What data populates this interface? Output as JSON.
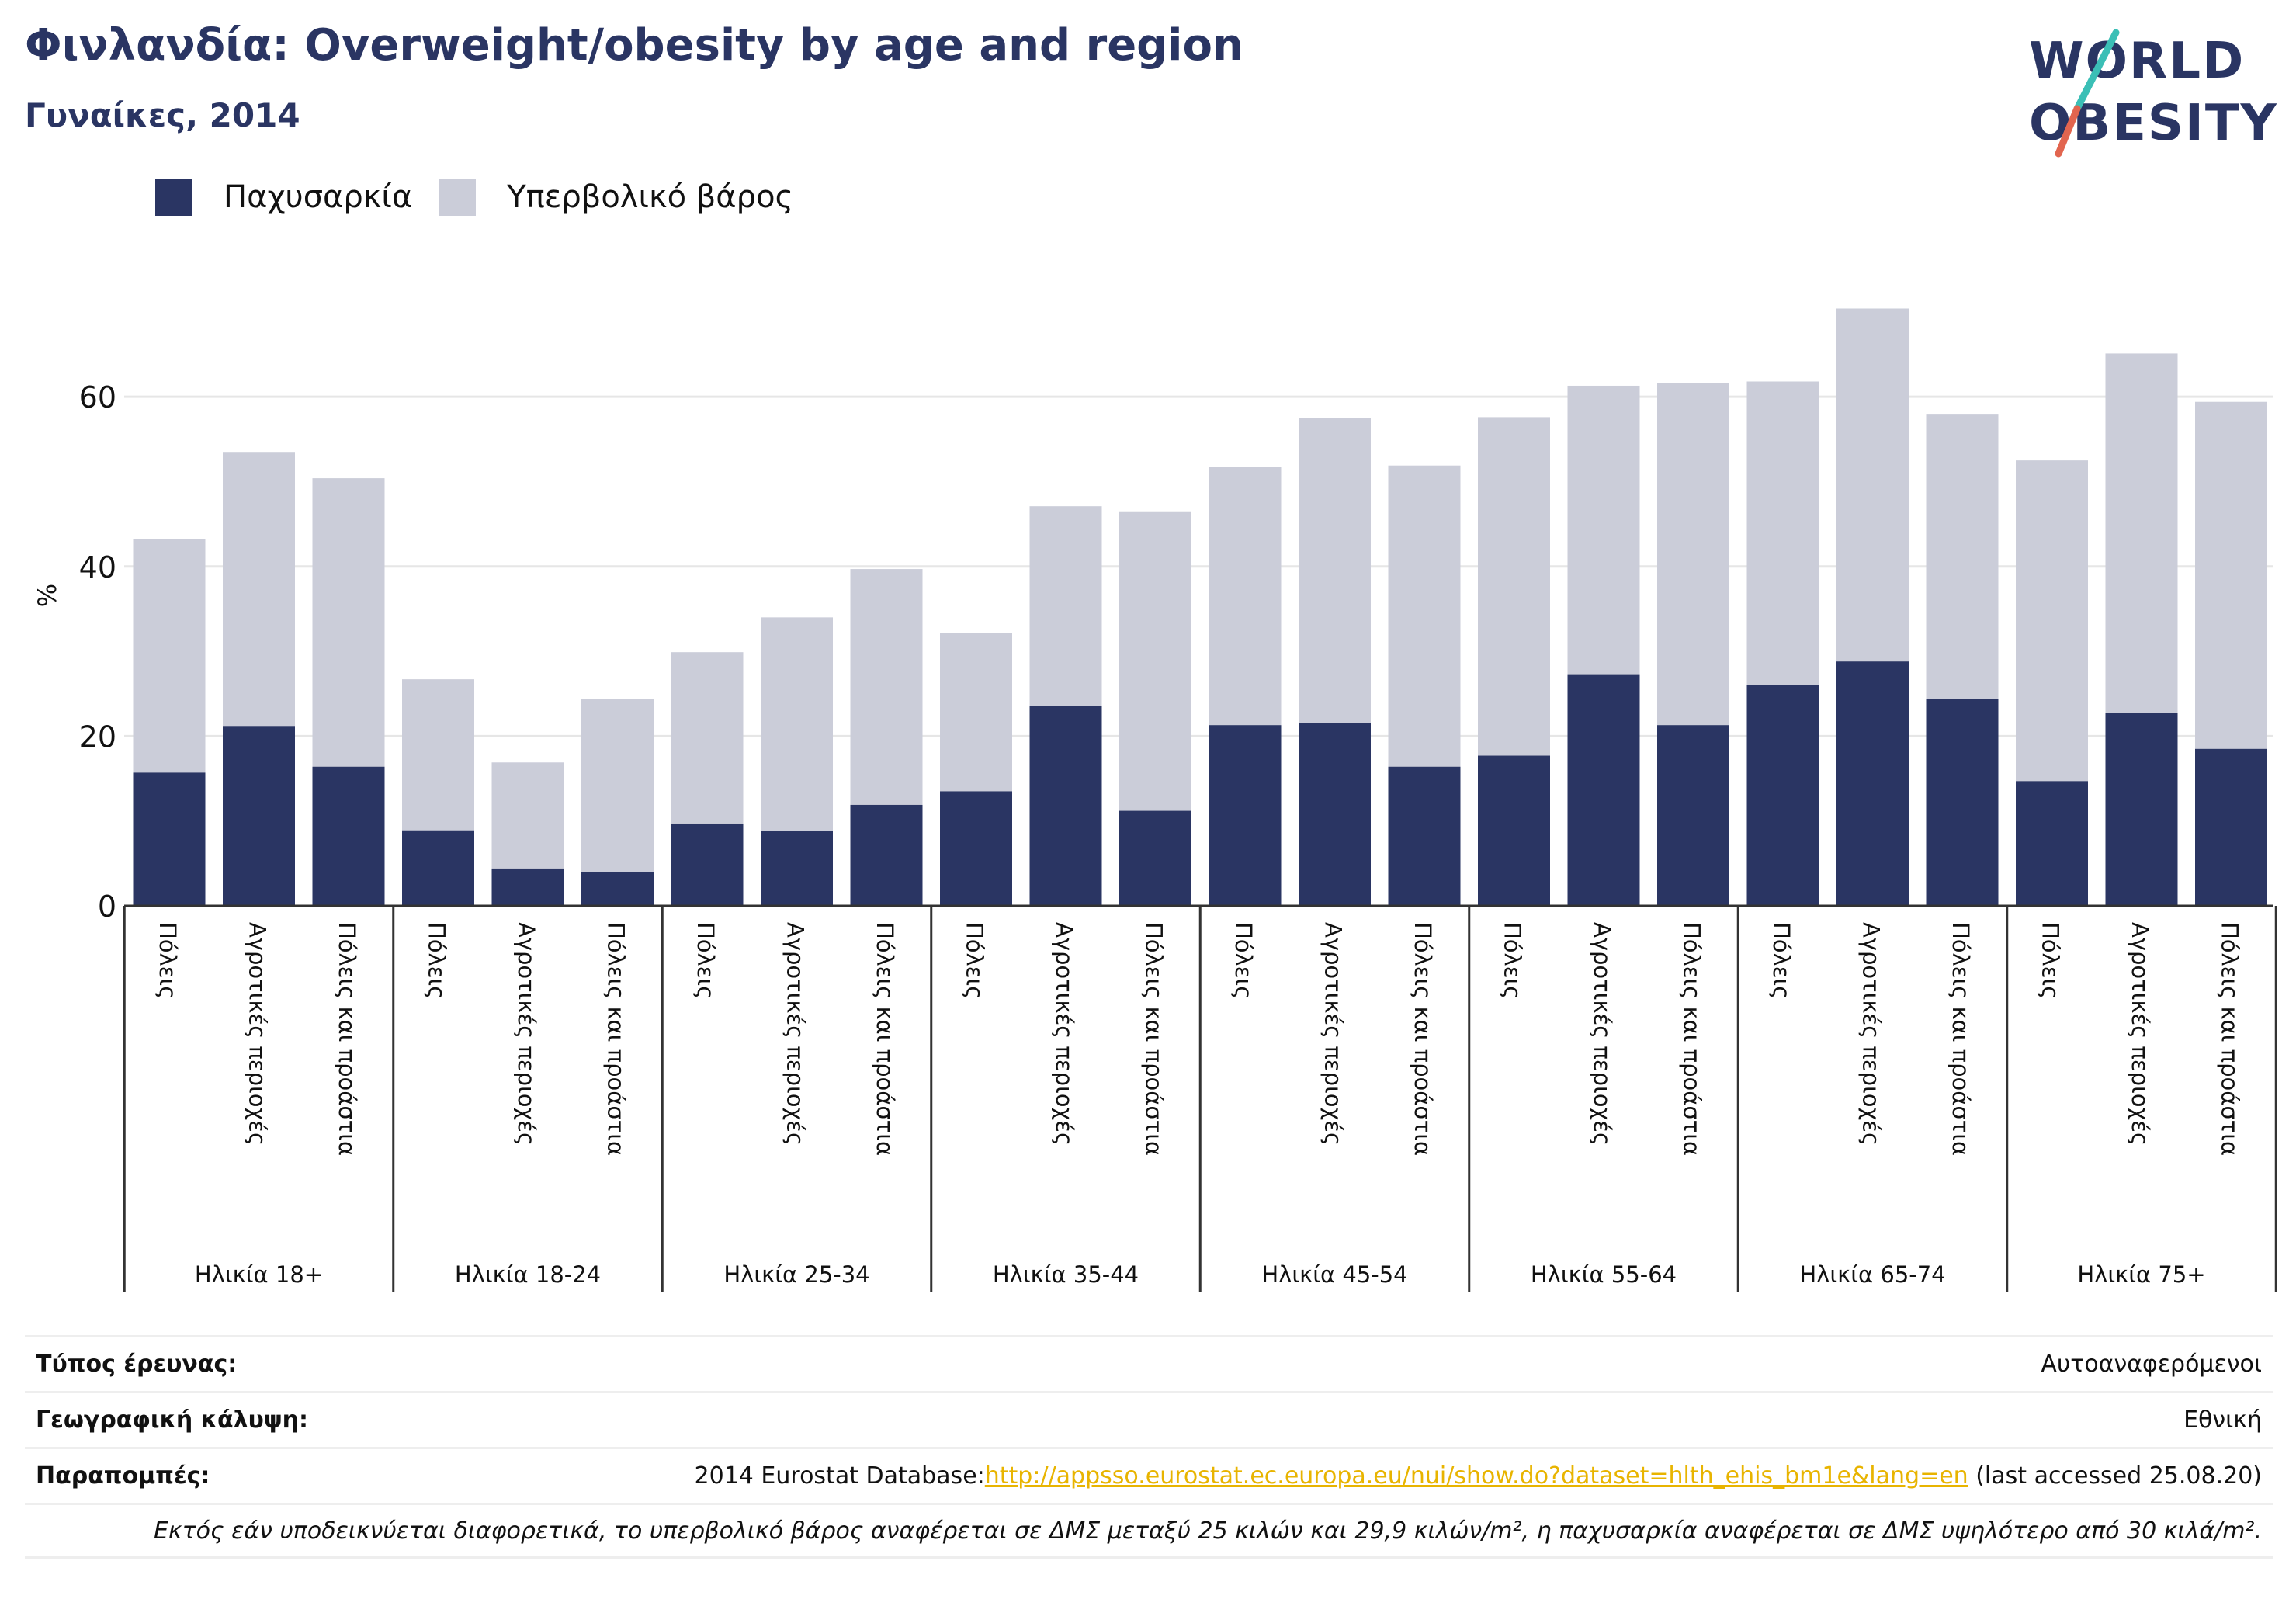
{
  "title": "Φινλανδία: Overweight/obesity by age and region",
  "subtitle": "Γυναίκες, 2014",
  "logo": {
    "line1": "WORLD",
    "line2": "OBESITY"
  },
  "colors": {
    "obesity": "#2a3563",
    "overweight": "#cbcdd9",
    "title": "#2a3563",
    "link": "#e8b400"
  },
  "legend": [
    {
      "label": "Παχυσαρκία",
      "color": "#2a3563"
    },
    {
      "label": "Υπερβολικό βάρος",
      "color": "#cbcdd9"
    }
  ],
  "chart_data": {
    "type": "bar",
    "stacked": true,
    "ylabel": "%",
    "ylim": [
      0,
      72
    ],
    "yticks": [
      0,
      20,
      40,
      60
    ],
    "grid": true,
    "legend_position": "top-left",
    "groups": [
      "Ηλικία 18+",
      "Ηλικία 18-24",
      "Ηλικία 25-34",
      "Ηλικία 35-44",
      "Ηλικία 45-54",
      "Ηλικία 55-64",
      "Ηλικία 65-74",
      "Ηλικία 75+"
    ],
    "subcategories": [
      "Πόλεις",
      "Αγροτικές περιοχές",
      "Πόλεις και προάστια"
    ],
    "series": [
      {
        "name": "Παχυσαρκία",
        "values": [
          15.7,
          21.2,
          16.4,
          8.9,
          4.4,
          4.0,
          9.7,
          8.8,
          11.9,
          13.5,
          23.6,
          11.2,
          21.3,
          21.5,
          16.4,
          17.7,
          27.3,
          21.3,
          26.0,
          28.8,
          24.4,
          14.7,
          22.7,
          18.5
        ]
      },
      {
        "name": "Υπερβολικό βάρος",
        "values": [
          27.5,
          32.3,
          34.0,
          17.8,
          12.5,
          20.4,
          20.2,
          25.2,
          27.8,
          18.7,
          23.5,
          35.3,
          30.4,
          36.0,
          35.5,
          39.9,
          34.0,
          40.3,
          35.8,
          41.6,
          33.5,
          37.8,
          42.4,
          40.9
        ]
      }
    ]
  },
  "meta": {
    "survey_type": {
      "label": "Τύπος έρευνας:",
      "value": "Αυτοαναφερόμενοι"
    },
    "coverage": {
      "label": "Γεωγραφική κάλυψη:",
      "value": "Εθνική"
    },
    "references": {
      "label": "Παραπομπές:",
      "prefix": "2014 Eurostat Database:",
      "link": "http://appsso.eurostat.ec.europa.eu/nui/show.do?dataset=hlth_ehis_bm1e&lang=en",
      "suffix": " (last accessed 25.08.20)"
    },
    "footnote": "Εκτός εάν υποδεικνύεται διαφορετικά, το υπερβολικό βάρος αναφέρεται σε ΔΜΣ μεταξύ 25 κιλών και 29,9 κιλών/m², η παχυσαρκία αναφέρεται σε ΔΜΣ υψηλότερο από 30 κιλά/m²."
  }
}
